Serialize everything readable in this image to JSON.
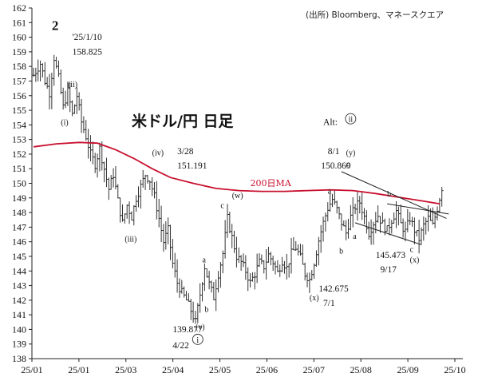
{
  "chart_data": {
    "type": "candlestick",
    "title": "米ドル/円 日足",
    "source": "(出所) Bloomberg、マネースクエア",
    "ylim": [
      138,
      162
    ],
    "y_ticks": [
      138,
      139,
      140,
      141,
      142,
      143,
      144,
      145,
      146,
      147,
      148,
      149,
      150,
      151,
      152,
      153,
      154,
      155,
      156,
      157,
      158,
      159,
      160,
      161,
      162
    ],
    "x_ticks": [
      "25/01",
      "25/01",
      "25/03",
      "25/04",
      "25/05",
      "25/06",
      "25/07",
      "25/08",
      "25/09",
      "25/10"
    ],
    "price_path": [
      [
        0,
        157.4
      ],
      [
        3,
        158.2
      ],
      [
        5,
        157.0
      ],
      [
        7,
        156.2
      ],
      [
        9,
        158.6
      ],
      [
        11,
        157.2
      ],
      [
        13,
        155.2
      ],
      [
        15,
        156.3
      ],
      [
        17,
        154.7
      ],
      [
        19,
        156.0
      ],
      [
        21,
        154.2
      ],
      [
        23,
        153.2
      ],
      [
        25,
        152.0
      ],
      [
        27,
        151.3
      ],
      [
        29,
        152.4
      ],
      [
        31,
        151.0
      ],
      [
        33,
        149.6
      ],
      [
        35,
        150.6
      ],
      [
        37,
        148.8
      ],
      [
        39,
        147.3
      ],
      [
        41,
        148.5
      ],
      [
        43,
        147.7
      ],
      [
        45,
        149.0
      ],
      [
        47,
        149.8
      ],
      [
        49,
        150.6
      ],
      [
        51,
        150.2
      ],
      [
        53,
        149.1
      ],
      [
        55,
        147.6
      ],
      [
        57,
        146.0
      ],
      [
        59,
        146.8
      ],
      [
        61,
        144.5
      ],
      [
        63,
        143.2
      ],
      [
        65,
        142.5
      ],
      [
        67,
        142.0
      ],
      [
        69,
        141.3
      ],
      [
        71,
        140.5
      ],
      [
        73,
        142.4
      ],
      [
        75,
        144.3
      ],
      [
        77,
        143.1
      ],
      [
        79,
        142.2
      ],
      [
        81,
        143.8
      ],
      [
        83,
        145.2
      ],
      [
        85,
        147.6
      ],
      [
        87,
        146.3
      ],
      [
        89,
        145.0
      ],
      [
        91,
        144.6
      ],
      [
        93,
        144.0
      ],
      [
        95,
        143.2
      ],
      [
        97,
        143.8
      ],
      [
        99,
        144.6
      ],
      [
        101,
        144.3
      ],
      [
        103,
        145.1
      ],
      [
        105,
        144.6
      ],
      [
        107,
        143.9
      ],
      [
        109,
        144.7
      ],
      [
        111,
        144.2
      ],
      [
        113,
        145.2
      ],
      [
        115,
        145.6
      ],
      [
        117,
        144.9
      ],
      [
        119,
        143.8
      ],
      [
        121,
        143.4
      ],
      [
        123,
        144.6
      ],
      [
        125,
        146.1
      ],
      [
        127,
        147.3
      ],
      [
        129,
        148.3
      ],
      [
        131,
        148.9
      ],
      [
        133,
        148.2
      ],
      [
        135,
        147.3
      ],
      [
        137,
        146.6
      ],
      [
        139,
        147.7
      ],
      [
        141,
        148.4
      ],
      [
        143,
        148.7
      ],
      [
        145,
        147.7
      ],
      [
        147,
        146.6
      ],
      [
        149,
        147.3
      ],
      [
        151,
        147.8
      ],
      [
        153,
        147.2
      ],
      [
        155,
        146.8
      ],
      [
        157,
        147.5
      ],
      [
        159,
        148.1
      ],
      [
        161,
        147.2
      ],
      [
        163,
        146.7
      ],
      [
        165,
        147.6
      ],
      [
        167,
        146.8
      ],
      [
        169,
        146.2
      ],
      [
        171,
        147.1
      ],
      [
        173,
        147.6
      ],
      [
        175,
        147.1
      ],
      [
        177,
        148.3
      ],
      [
        179,
        149.7
      ]
    ],
    "ma200": [
      [
        0,
        152.5
      ],
      [
        10,
        152.7
      ],
      [
        20,
        152.8
      ],
      [
        28,
        152.75
      ],
      [
        36,
        152.3
      ],
      [
        44,
        151.7
      ],
      [
        52,
        151.0
      ],
      [
        60,
        150.4
      ],
      [
        70,
        150.0
      ],
      [
        80,
        149.65
      ],
      [
        90,
        149.5
      ],
      [
        100,
        149.45
      ],
      [
        110,
        149.45
      ],
      [
        120,
        149.5
      ],
      [
        130,
        149.55
      ],
      [
        140,
        149.5
      ],
      [
        150,
        149.3
      ],
      [
        160,
        149.05
      ],
      [
        170,
        148.8
      ],
      [
        178,
        148.6
      ]
    ],
    "series": [
      {
        "name": "200日MA",
        "color": "#c8102e"
      }
    ],
    "trendlines": [
      {
        "from": [
          135,
          150.8
        ],
        "to": [
          181,
          147.6
        ]
      },
      {
        "from": [
          141,
          147.3
        ],
        "to": [
          170,
          145.8
        ]
      },
      {
        "from": [
          155,
          148.6
        ],
        "to": [
          182,
          147.9
        ]
      }
    ],
    "annotations": [
      {
        "text": "2",
        "x": 8,
        "y": 160.5,
        "style": "big"
      },
      {
        "text": "'25/1/10",
        "x": 17,
        "y": 159.8,
        "style": "ann"
      },
      {
        "text": "158.825",
        "x": 17,
        "y": 158.8,
        "style": "ann"
      },
      {
        "text": "(ii)",
        "x": 15,
        "y": 156.6,
        "style": "wave"
      },
      {
        "text": "(i)",
        "x": 12,
        "y": 154.0,
        "style": "wave"
      },
      {
        "text": "(iv)",
        "x": 52,
        "y": 151.9,
        "style": "wave"
      },
      {
        "text": "3/28",
        "x": 63,
        "y": 152.0,
        "style": "ann"
      },
      {
        "text": "151.191",
        "x": 63,
        "y": 151.0,
        "style": "ann"
      },
      {
        "text": "(iii)",
        "x": 40,
        "y": 146.0,
        "style": "wave"
      },
      {
        "text": "a",
        "x": 74,
        "y": 144.6,
        "style": "wave"
      },
      {
        "text": "b",
        "x": 75,
        "y": 141.2,
        "style": "wave"
      },
      {
        "text": "c",
        "x": 82,
        "y": 148.3,
        "style": "wave"
      },
      {
        "text": "(w)",
        "x": 87,
        "y": 149.0,
        "style": "wave"
      },
      {
        "text": "(v)",
        "x": 71,
        "y": 140.0,
        "style": "wave"
      },
      {
        "text": "139.877",
        "x": 61,
        "y": 139.8,
        "style": "ann"
      },
      {
        "text": "4/22",
        "x": 61,
        "y": 138.7,
        "style": "ann"
      },
      {
        "text": "i",
        "x": 72,
        "y": 139.1,
        "style": "circled"
      },
      {
        "text": "200日MA",
        "x": 95,
        "y": 149.8,
        "style": "ma"
      },
      {
        "text": "Alt:",
        "x": 127,
        "y": 154.0,
        "style": "ann"
      },
      {
        "text": "ii",
        "x": 139,
        "y": 154.2,
        "style": "circled"
      },
      {
        "text": "8/1",
        "x": 129,
        "y": 152.0,
        "style": "ann"
      },
      {
        "text": "150.869",
        "x": 126,
        "y": 151.0,
        "style": "ann"
      },
      {
        "text": "(y)",
        "x": 137,
        "y": 151.9,
        "style": "wave"
      },
      {
        "text": "c",
        "x": 137,
        "y": 151.1,
        "style": "wave"
      },
      {
        "text": "a",
        "x": 129,
        "y": 149.3,
        "style": "wave"
      },
      {
        "text": "b",
        "x": 134,
        "y": 145.2,
        "style": "wave"
      },
      {
        "text": "(x)",
        "x": 121,
        "y": 142.0,
        "style": "wave"
      },
      {
        "text": "142.675",
        "x": 125,
        "y": 142.6,
        "style": "ann"
      },
      {
        "text": "7/1",
        "x": 127,
        "y": 141.6,
        "style": "ann"
      },
      {
        "text": "a",
        "x": 140,
        "y": 146.2,
        "style": "wave"
      },
      {
        "text": "b",
        "x": 155,
        "y": 149.1,
        "style": "wave"
      },
      {
        "text": "c",
        "x": 165,
        "y": 145.3,
        "style": "wave"
      },
      {
        "text": "(x)",
        "x": 165,
        "y": 144.6,
        "style": "wave"
      },
      {
        "text": "145.473",
        "x": 150,
        "y": 144.9,
        "style": "ann"
      },
      {
        "text": "9/17",
        "x": 152,
        "y": 143.9,
        "style": "ann"
      }
    ]
  }
}
